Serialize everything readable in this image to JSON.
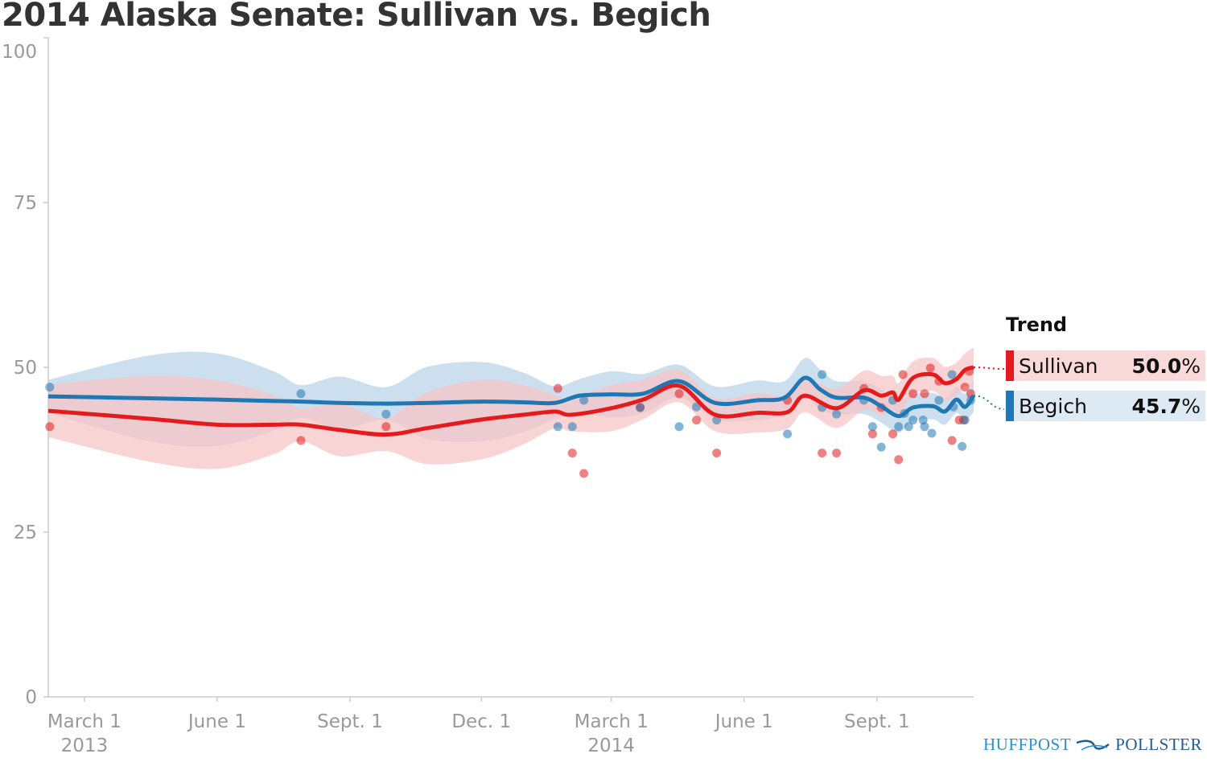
{
  "title": "2014 Alaska Senate: Sullivan vs. Begich",
  "legend": {
    "title": "Trend",
    "entries": [
      {
        "name": "Sullivan",
        "value_num": "50.0",
        "value_unit": "%"
      },
      {
        "name": "Begich",
        "value_num": "45.7",
        "value_unit": "%"
      }
    ]
  },
  "logo": {
    "left": "HUFFPOST",
    "right": "POLLSTER"
  },
  "chart_data": {
    "type": "line",
    "title": "2014 Alaska Senate: Sullivan vs. Begich",
    "xlabel": "",
    "ylabel": "",
    "ylim": [
      0,
      100
    ],
    "x_range": [
      "2013-02-04",
      "2014-11-07"
    ],
    "y_ticks": [
      0,
      25,
      50,
      75,
      100
    ],
    "x_ticks": [
      {
        "date": "2013-03-01",
        "label": "March 1",
        "sub": "2013"
      },
      {
        "date": "2013-06-01",
        "label": "June 1",
        "sub": ""
      },
      {
        "date": "2013-09-01",
        "label": "Sept. 1",
        "sub": ""
      },
      {
        "date": "2013-12-01",
        "label": "Dec. 1",
        "sub": ""
      },
      {
        "date": "2014-03-01",
        "label": "March 1",
        "sub": "2014"
      },
      {
        "date": "2014-06-01",
        "label": "June 1",
        "sub": ""
      },
      {
        "date": "2014-09-01",
        "label": "Sept. 1",
        "sub": ""
      }
    ],
    "grid": false,
    "legend_position": "right",
    "series": [
      {
        "name": "Sullivan",
        "color": "#e41a1c",
        "band_color": "#f7c6c7",
        "trend": [
          [
            "2013-02-04",
            43.4,
            4
          ],
          [
            "2013-04-15",
            42.2,
            6.5
          ],
          [
            "2013-06-01",
            41.3,
            6.7
          ],
          [
            "2013-07-10",
            41.3,
            4.5
          ],
          [
            "2013-07-29",
            41.3,
            2.5
          ],
          [
            "2013-08-25",
            40.5,
            4
          ],
          [
            "2013-09-26",
            39.8,
            2.5
          ],
          [
            "2013-10-25",
            40.8,
            5.5
          ],
          [
            "2013-12-02",
            42.1,
            6
          ],
          [
            "2013-12-30",
            42.8,
            4.5
          ],
          [
            "2014-01-21",
            43.3,
            2.5
          ],
          [
            "2014-02-01",
            42.8,
            2.5
          ],
          [
            "2014-03-01",
            43.8,
            3.5
          ],
          [
            "2014-03-23",
            45.1,
            3
          ],
          [
            "2014-04-17",
            47.2,
            2.5
          ],
          [
            "2014-05-12",
            42.8,
            2.5
          ],
          [
            "2014-06-10",
            43.1,
            3
          ],
          [
            "2014-07-01",
            43.2,
            2.5
          ],
          [
            "2014-07-13",
            45.7,
            2.5
          ],
          [
            "2014-08-04",
            43.8,
            3
          ],
          [
            "2014-08-23",
            46.5,
            3
          ],
          [
            "2014-09-04",
            45.7,
            3
          ],
          [
            "2014-09-12",
            46.2,
            2.5
          ],
          [
            "2014-09-16",
            45.1,
            2.5
          ],
          [
            "2014-09-26",
            48.4,
            2.5
          ],
          [
            "2014-10-10",
            48.9,
            2.5
          ],
          [
            "2014-10-18",
            47.6,
            2.5
          ],
          [
            "2014-10-26",
            48.2,
            2.5
          ],
          [
            "2014-11-01",
            49.6,
            2.5
          ],
          [
            "2014-11-07",
            50.0,
            3
          ]
        ],
        "polls": [
          [
            "2013-02-05",
            41.0
          ],
          [
            "2013-07-29",
            38.9
          ],
          [
            "2013-09-26",
            41.0
          ],
          [
            "2014-01-23",
            46.8
          ],
          [
            "2014-02-02",
            37.0
          ],
          [
            "2014-02-10",
            33.9
          ],
          [
            "2014-03-21",
            43.9
          ],
          [
            "2014-04-17",
            46.0
          ],
          [
            "2014-04-29",
            42.0
          ],
          [
            "2014-05-13",
            37.0
          ],
          [
            "2014-07-01",
            45.0
          ],
          [
            "2014-07-25",
            37.0
          ],
          [
            "2014-08-04",
            37.0
          ],
          [
            "2014-08-23",
            46.8
          ],
          [
            "2014-08-29",
            39.9
          ],
          [
            "2014-09-04",
            43.9
          ],
          [
            "2014-09-12",
            39.9
          ],
          [
            "2014-09-16",
            36.0
          ],
          [
            "2014-09-19",
            48.9
          ],
          [
            "2014-09-26",
            46.0
          ],
          [
            "2014-10-04",
            46.0
          ],
          [
            "2014-10-08",
            49.9
          ],
          [
            "2014-10-14",
            47.9
          ],
          [
            "2014-10-23",
            38.9
          ],
          [
            "2014-10-28",
            42.0
          ],
          [
            "2014-10-31",
            42.0
          ],
          [
            "2014-11-01",
            47.0
          ],
          [
            "2014-11-04",
            49.4
          ],
          [
            "2014-11-05",
            46.0
          ]
        ]
      },
      {
        "name": "Begich",
        "color": "#1f78b4",
        "band_color": "#c6dcec",
        "trend": [
          [
            "2013-02-04",
            45.6,
            2.5
          ],
          [
            "2013-04-15",
            45.3,
            6.5
          ],
          [
            "2013-06-01",
            45.1,
            7
          ],
          [
            "2013-07-10",
            44.9,
            4.5
          ],
          [
            "2013-07-29",
            44.8,
            2.5
          ],
          [
            "2013-08-25",
            44.6,
            4
          ],
          [
            "2013-09-26",
            44.5,
            2.5
          ],
          [
            "2013-10-25",
            44.6,
            5.5
          ],
          [
            "2013-12-02",
            44.8,
            6
          ],
          [
            "2013-12-30",
            44.7,
            4.5
          ],
          [
            "2014-01-21",
            44.6,
            2.5
          ],
          [
            "2014-02-07",
            45.7,
            2.5
          ],
          [
            "2014-03-01",
            45.9,
            3.5
          ],
          [
            "2014-03-23",
            46.0,
            3
          ],
          [
            "2014-04-17",
            47.9,
            2.5
          ],
          [
            "2014-05-12",
            44.6,
            2.5
          ],
          [
            "2014-06-10",
            45.0,
            3
          ],
          [
            "2014-06-29",
            45.4,
            2.5
          ],
          [
            "2014-07-13",
            48.4,
            3
          ],
          [
            "2014-07-24",
            46.6,
            3
          ],
          [
            "2014-08-04",
            45.4,
            2.5
          ],
          [
            "2014-08-23",
            45.4,
            2.5
          ],
          [
            "2014-09-04",
            44.1,
            2.5
          ],
          [
            "2014-09-16",
            42.6,
            2.5
          ],
          [
            "2014-09-26",
            43.9,
            2
          ],
          [
            "2014-10-10",
            44.1,
            2
          ],
          [
            "2014-10-18",
            43.3,
            2
          ],
          [
            "2014-10-26",
            45.1,
            2
          ],
          [
            "2014-11-01",
            44.0,
            2
          ],
          [
            "2014-11-07",
            45.7,
            2.5
          ]
        ],
        "polls": [
          [
            "2013-02-05",
            47.0
          ],
          [
            "2013-07-29",
            46.0
          ],
          [
            "2013-09-26",
            42.9
          ],
          [
            "2014-01-23",
            41.0
          ],
          [
            "2014-02-02",
            41.0
          ],
          [
            "2014-02-10",
            45.0
          ],
          [
            "2014-03-21",
            43.9
          ],
          [
            "2014-04-17",
            41.0
          ],
          [
            "2014-04-29",
            44.0
          ],
          [
            "2014-05-13",
            42.0
          ],
          [
            "2014-07-01",
            39.9
          ],
          [
            "2014-07-25",
            48.9
          ],
          [
            "2014-07-25",
            43.9
          ],
          [
            "2014-08-04",
            42.9
          ],
          [
            "2014-08-23",
            45.0
          ],
          [
            "2014-08-29",
            41.0
          ],
          [
            "2014-09-04",
            37.9
          ],
          [
            "2014-09-12",
            45.0
          ],
          [
            "2014-09-16",
            41.0
          ],
          [
            "2014-09-20",
            43.0
          ],
          [
            "2014-09-23",
            41.0
          ],
          [
            "2014-09-26",
            42.0
          ],
          [
            "2014-10-03",
            42.0
          ],
          [
            "2014-10-04",
            41.0
          ],
          [
            "2014-10-09",
            40.0
          ],
          [
            "2014-10-14",
            45.0
          ],
          [
            "2014-10-23",
            48.9
          ],
          [
            "2014-10-24",
            44.0
          ],
          [
            "2014-10-30",
            38.0
          ],
          [
            "2014-11-01",
            42.0
          ],
          [
            "2014-11-05",
            45.0
          ]
        ]
      }
    ]
  }
}
